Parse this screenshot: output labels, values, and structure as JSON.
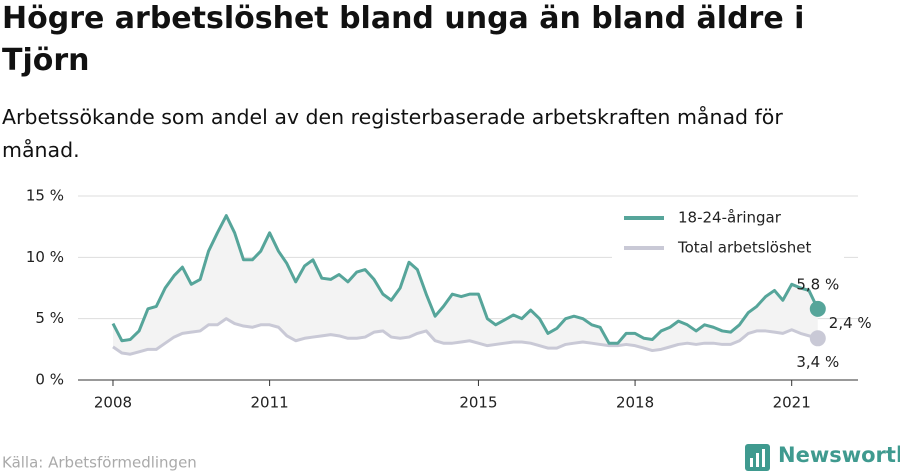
{
  "chart_data": {
    "type": "line",
    "title": "Högre arbetslöshet bland unga än bland äldre i Tjörn",
    "subtitle": "Arbetssökande som andel av den registerbaserade arbetskraften månad för månad.",
    "source": "Källa: Arbetsförmedlingen",
    "brand": "Newsworthy",
    "x": [
      2008,
      2008.17,
      2008.33,
      2008.5,
      2008.67,
      2008.83,
      2009,
      2009.17,
      2009.33,
      2009.5,
      2009.67,
      2009.83,
      2010,
      2010.17,
      2010.33,
      2010.5,
      2010.67,
      2010.83,
      2011,
      2011.17,
      2011.33,
      2011.5,
      2011.67,
      2011.83,
      2012,
      2012.17,
      2012.33,
      2012.5,
      2012.67,
      2012.83,
      2013,
      2013.17,
      2013.33,
      2013.5,
      2013.67,
      2013.83,
      2014,
      2014.17,
      2014.33,
      2014.5,
      2014.67,
      2014.83,
      2015,
      2015.17,
      2015.33,
      2015.5,
      2015.67,
      2015.83,
      2016,
      2016.17,
      2016.33,
      2016.5,
      2016.67,
      2016.83,
      2017,
      2017.17,
      2017.33,
      2017.5,
      2017.67,
      2017.83,
      2018,
      2018.17,
      2018.33,
      2018.5,
      2018.67,
      2018.83,
      2019,
      2019.17,
      2019.33,
      2019.5,
      2019.67,
      2019.83,
      2020,
      2020.17,
      2020.33,
      2020.5,
      2020.67,
      2020.83,
      2021,
      2021.17,
      2021.33,
      2021.5
    ],
    "series": [
      {
        "name": "18-24-åringar",
        "color": "#56a59a",
        "values": [
          4.6,
          3.2,
          3.3,
          4.0,
          5.8,
          6.0,
          7.5,
          8.5,
          9.2,
          7.8,
          8.2,
          10.5,
          12.0,
          13.4,
          12.0,
          9.8,
          9.8,
          10.5,
          12.0,
          10.5,
          9.5,
          8.0,
          9.3,
          9.8,
          8.3,
          8.2,
          8.6,
          8.0,
          8.8,
          9.0,
          8.2,
          7.0,
          6.5,
          7.5,
          9.6,
          9.0,
          7.0,
          5.2,
          6.0,
          7.0,
          6.8,
          7.0,
          7.0,
          5.0,
          4.5,
          4.9,
          5.3,
          5.0,
          5.7,
          5.0,
          3.8,
          4.2,
          5.0,
          5.2,
          5.0,
          4.5,
          4.3,
          3.0,
          3.0,
          3.8,
          3.8,
          3.4,
          3.3,
          4.0,
          4.3,
          4.8,
          4.5,
          4.0,
          4.5,
          4.3,
          4.0,
          3.9,
          4.5,
          5.5,
          6.0,
          6.8,
          7.3,
          6.5,
          7.8,
          7.5,
          7.3,
          5.8
        ]
      },
      {
        "name": "Total arbetslöshet",
        "color": "#c9c9d6",
        "values": [
          2.7,
          2.2,
          2.1,
          2.3,
          2.5,
          2.5,
          3.0,
          3.5,
          3.8,
          3.9,
          4.0,
          4.5,
          4.5,
          5.0,
          4.6,
          4.4,
          4.3,
          4.5,
          4.5,
          4.3,
          3.6,
          3.2,
          3.4,
          3.5,
          3.6,
          3.7,
          3.6,
          3.4,
          3.4,
          3.5,
          3.9,
          4.0,
          3.5,
          3.4,
          3.5,
          3.8,
          4.0,
          3.2,
          3.0,
          3.0,
          3.1,
          3.2,
          3.0,
          2.8,
          2.9,
          3.0,
          3.1,
          3.1,
          3.0,
          2.8,
          2.6,
          2.6,
          2.9,
          3.0,
          3.1,
          3.0,
          2.9,
          2.8,
          2.8,
          2.9,
          2.8,
          2.6,
          2.4,
          2.5,
          2.7,
          2.9,
          3.0,
          2.9,
          3.0,
          3.0,
          2.9,
          2.9,
          3.2,
          3.8,
          4.0,
          4.0,
          3.9,
          3.8,
          4.1,
          3.8,
          3.6,
          3.4
        ]
      }
    ],
    "annotations": [
      "5,8 %",
      "2,4 %",
      "3,4 %"
    ],
    "xlim": [
      2007.33,
      2022.27
    ],
    "xticks": [
      2008,
      2011,
      2015,
      2018,
      2021
    ],
    "ylim": [
      0,
      15
    ],
    "yticks": [
      {
        "value": 0,
        "label": "0 %"
      },
      {
        "value": 5,
        "label": "5 %"
      },
      {
        "value": 10,
        "label": "10 %"
      },
      {
        "value": 15,
        "label": "15 %"
      }
    ],
    "grid": true,
    "legend": "top-right"
  }
}
